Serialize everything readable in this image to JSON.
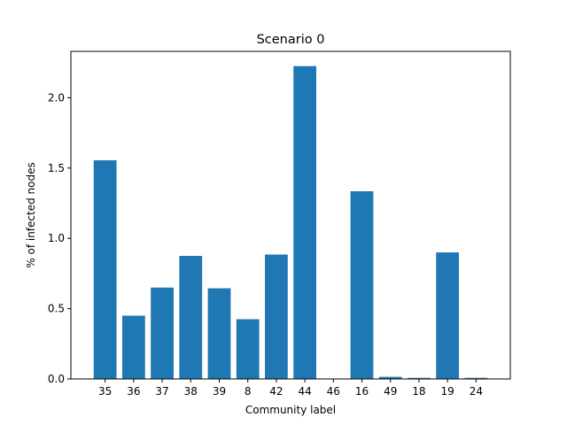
{
  "chart_data": {
    "type": "bar",
    "title": "Scenario 0",
    "xlabel": "Community label",
    "ylabel": "% of infected nodes",
    "categories": [
      "35",
      "36",
      "37",
      "38",
      "39",
      "8",
      "42",
      "44",
      "46",
      "16",
      "49",
      "18",
      "19",
      "24"
    ],
    "values": [
      1.555,
      0.45,
      0.65,
      0.875,
      0.645,
      0.425,
      0.885,
      2.225,
      0.0,
      1.335,
      0.015,
      0.008,
      0.9,
      0.008
    ],
    "ylim": [
      0,
      2.33
    ],
    "yticks": [
      "0.0",
      "0.5",
      "1.0",
      "1.5",
      "2.0"
    ],
    "ytick_values": [
      0,
      0.5,
      1.0,
      1.5,
      2.0
    ],
    "bar_color": "#1f77b4",
    "grid": false,
    "legend": "none"
  }
}
